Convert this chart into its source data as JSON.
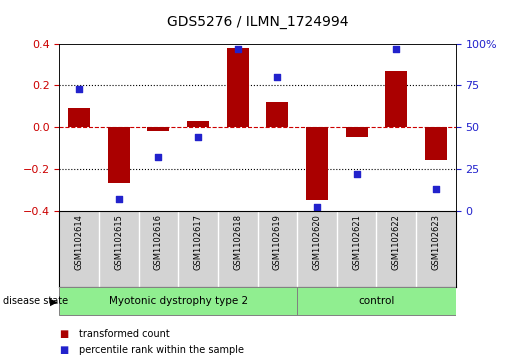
{
  "title": "GDS5276 / ILMN_1724994",
  "samples": [
    "GSM1102614",
    "GSM1102615",
    "GSM1102616",
    "GSM1102617",
    "GSM1102618",
    "GSM1102619",
    "GSM1102620",
    "GSM1102621",
    "GSM1102622",
    "GSM1102623"
  ],
  "bar_values": [
    0.09,
    -0.27,
    -0.02,
    0.03,
    0.38,
    0.12,
    -0.35,
    -0.05,
    0.27,
    -0.16
  ],
  "scatter_values": [
    0.73,
    0.07,
    0.32,
    0.44,
    0.97,
    0.8,
    0.02,
    0.22,
    0.97,
    0.13
  ],
  "groups": [
    {
      "label": "Myotonic dystrophy type 2",
      "start": 0,
      "end": 6,
      "color": "#90EE90"
    },
    {
      "label": "control",
      "start": 6,
      "end": 10,
      "color": "#90EE90"
    }
  ],
  "bar_color": "#AA0000",
  "scatter_color": "#2222CC",
  "ylim_left": [
    -0.4,
    0.4
  ],
  "ylim_right": [
    0.0,
    1.0
  ],
  "yticks_left": [
    -0.4,
    -0.2,
    0.0,
    0.2,
    0.4
  ],
  "yticks_right": [
    0.0,
    0.25,
    0.5,
    0.75,
    1.0
  ],
  "ytick_labels_right": [
    "0",
    "25",
    "50",
    "75",
    "100%"
  ],
  "legend_items": [
    {
      "label": "transformed count",
      "color": "#AA0000"
    },
    {
      "label": "percentile rank within the sample",
      "color": "#2222CC"
    }
  ],
  "disease_state_label": "disease state",
  "label_color_left": "#CC0000",
  "label_color_right": "#2222CC",
  "sample_box_color": "#D3D3D3",
  "background_color": "#ffffff"
}
